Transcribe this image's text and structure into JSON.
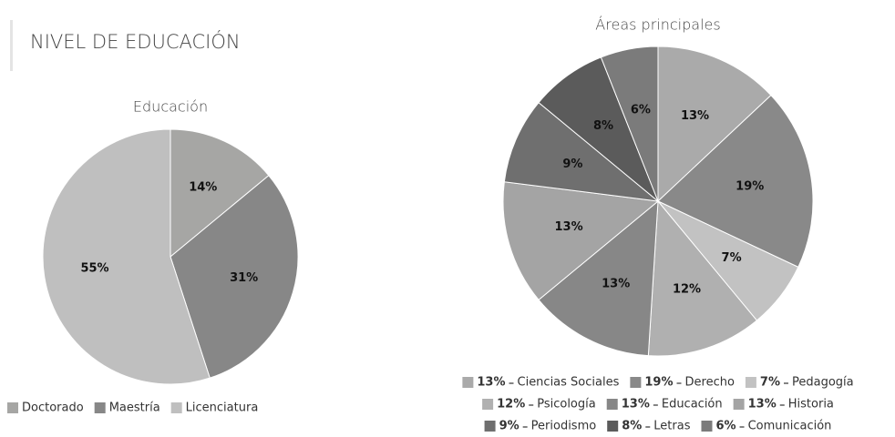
{
  "header": {
    "title": "NIVEL DE EDUCACIÓN"
  },
  "chart_data": [
    {
      "type": "pie",
      "title": "Educación",
      "categories": [
        "Doctorado",
        "Maestría",
        "Licenciatura"
      ],
      "values": [
        14,
        31,
        55
      ],
      "value_labels": [
        "14%",
        "31%",
        "55%"
      ],
      "colors": [
        "#a6a6a4",
        "#878787",
        "#bfbfbf"
      ],
      "legend": "bottom"
    },
    {
      "type": "pie",
      "title": "Áreas principales",
      "categories": [
        "Ciencias Sociales",
        "Derecho",
        "Pedagogía",
        "Psicología",
        "Educación",
        "Historia",
        "Periodismo",
        "Letras",
        "Comunicación"
      ],
      "values": [
        13,
        19,
        7,
        12,
        13,
        13,
        9,
        8,
        6
      ],
      "value_labels": [
        "13%",
        "19%",
        "7%",
        "12%",
        "13%",
        "13%",
        "9%",
        "8%",
        "6%"
      ],
      "colors": [
        "#aaaaaa",
        "#898989",
        "#c2c2c2",
        "#b0b0b0",
        "#878787",
        "#a4a4a4",
        "#6f6f6f",
        "#5b5b5b",
        "#7b7b7b"
      ],
      "legend": "bottom"
    }
  ]
}
